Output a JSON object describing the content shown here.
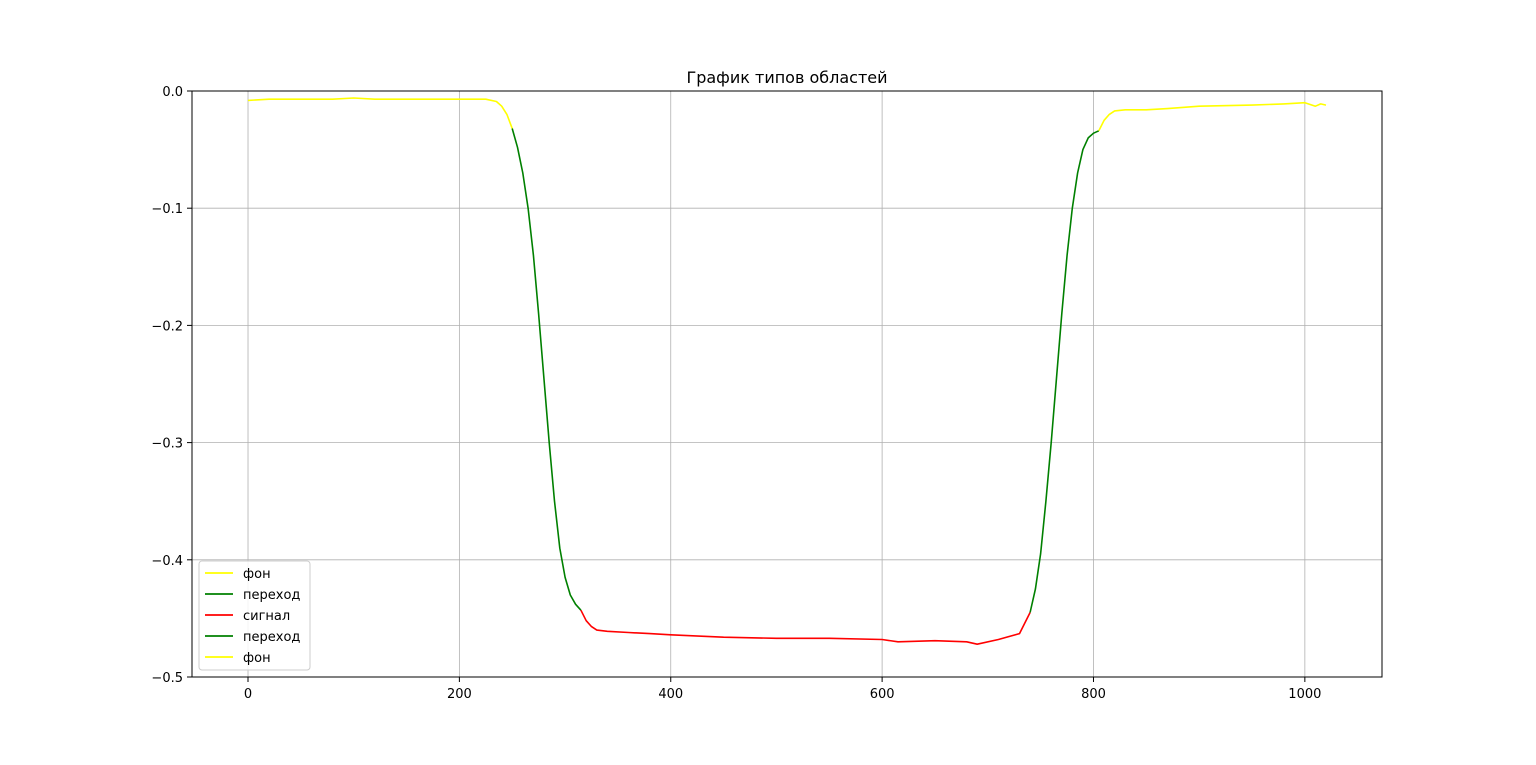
{
  "chart_data": {
    "type": "line",
    "title": "График типов областей",
    "xlabel": "",
    "ylabel": "",
    "xlim": [
      -53,
      1073
    ],
    "ylim": [
      -0.5,
      0.0
    ],
    "x_ticks": [
      0,
      200,
      400,
      600,
      800,
      1000
    ],
    "x_tick_labels": [
      "0",
      "200",
      "400",
      "600",
      "800",
      "1000"
    ],
    "y_ticks": [
      0.0,
      -0.1,
      -0.2,
      -0.3,
      -0.4,
      -0.5
    ],
    "y_tick_labels": [
      "0.0",
      "−0.1",
      "−0.2",
      "−0.3",
      "−0.4",
      "−0.5"
    ],
    "grid": true,
    "legend_position": "lower-left",
    "series": [
      {
        "name": "фон",
        "color": "#ffff00",
        "x": [
          0,
          20,
          40,
          60,
          80,
          100,
          120,
          140,
          160,
          180,
          200,
          215,
          225,
          235,
          240,
          245,
          250
        ],
        "y": [
          -0.008,
          -0.007,
          -0.007,
          -0.007,
          -0.007,
          -0.006,
          -0.007,
          -0.007,
          -0.007,
          -0.007,
          -0.007,
          -0.007,
          -0.007,
          -0.009,
          -0.013,
          -0.02,
          -0.032
        ]
      },
      {
        "name": "переход",
        "color": "#008000",
        "x": [
          250,
          255,
          260,
          265,
          270,
          275,
          280,
          285,
          290,
          295,
          300,
          305,
          310,
          315
        ],
        "y": [
          -0.032,
          -0.048,
          -0.07,
          -0.1,
          -0.14,
          -0.19,
          -0.245,
          -0.3,
          -0.35,
          -0.39,
          -0.415,
          -0.43,
          -0.438,
          -0.443
        ]
      },
      {
        "name": "сигнал",
        "color": "#ff0000",
        "x": [
          315,
          320,
          325,
          330,
          340,
          360,
          380,
          400,
          450,
          500,
          550,
          600,
          615,
          650,
          680,
          690,
          710,
          730,
          740
        ],
        "y": [
          -0.443,
          -0.452,
          -0.457,
          -0.46,
          -0.461,
          -0.462,
          -0.463,
          -0.464,
          -0.466,
          -0.467,
          -0.467,
          -0.468,
          -0.47,
          -0.469,
          -0.47,
          -0.472,
          -0.468,
          -0.463,
          -0.445
        ]
      },
      {
        "name": "переход",
        "color": "#008000",
        "x": [
          740,
          745,
          750,
          755,
          760,
          765,
          770,
          775,
          780,
          785,
          790,
          795,
          800,
          805
        ],
        "y": [
          -0.445,
          -0.425,
          -0.395,
          -0.35,
          -0.3,
          -0.245,
          -0.19,
          -0.14,
          -0.1,
          -0.07,
          -0.05,
          -0.04,
          -0.036,
          -0.034
        ]
      },
      {
        "name": "фон",
        "color": "#ffff00",
        "x": [
          805,
          810,
          815,
          820,
          830,
          850,
          870,
          900,
          950,
          980,
          1000,
          1010,
          1015,
          1020
        ],
        "y": [
          -0.034,
          -0.025,
          -0.02,
          -0.017,
          -0.016,
          -0.016,
          -0.015,
          -0.013,
          -0.012,
          -0.011,
          -0.01,
          -0.013,
          -0.011,
          -0.012
        ]
      }
    ]
  }
}
